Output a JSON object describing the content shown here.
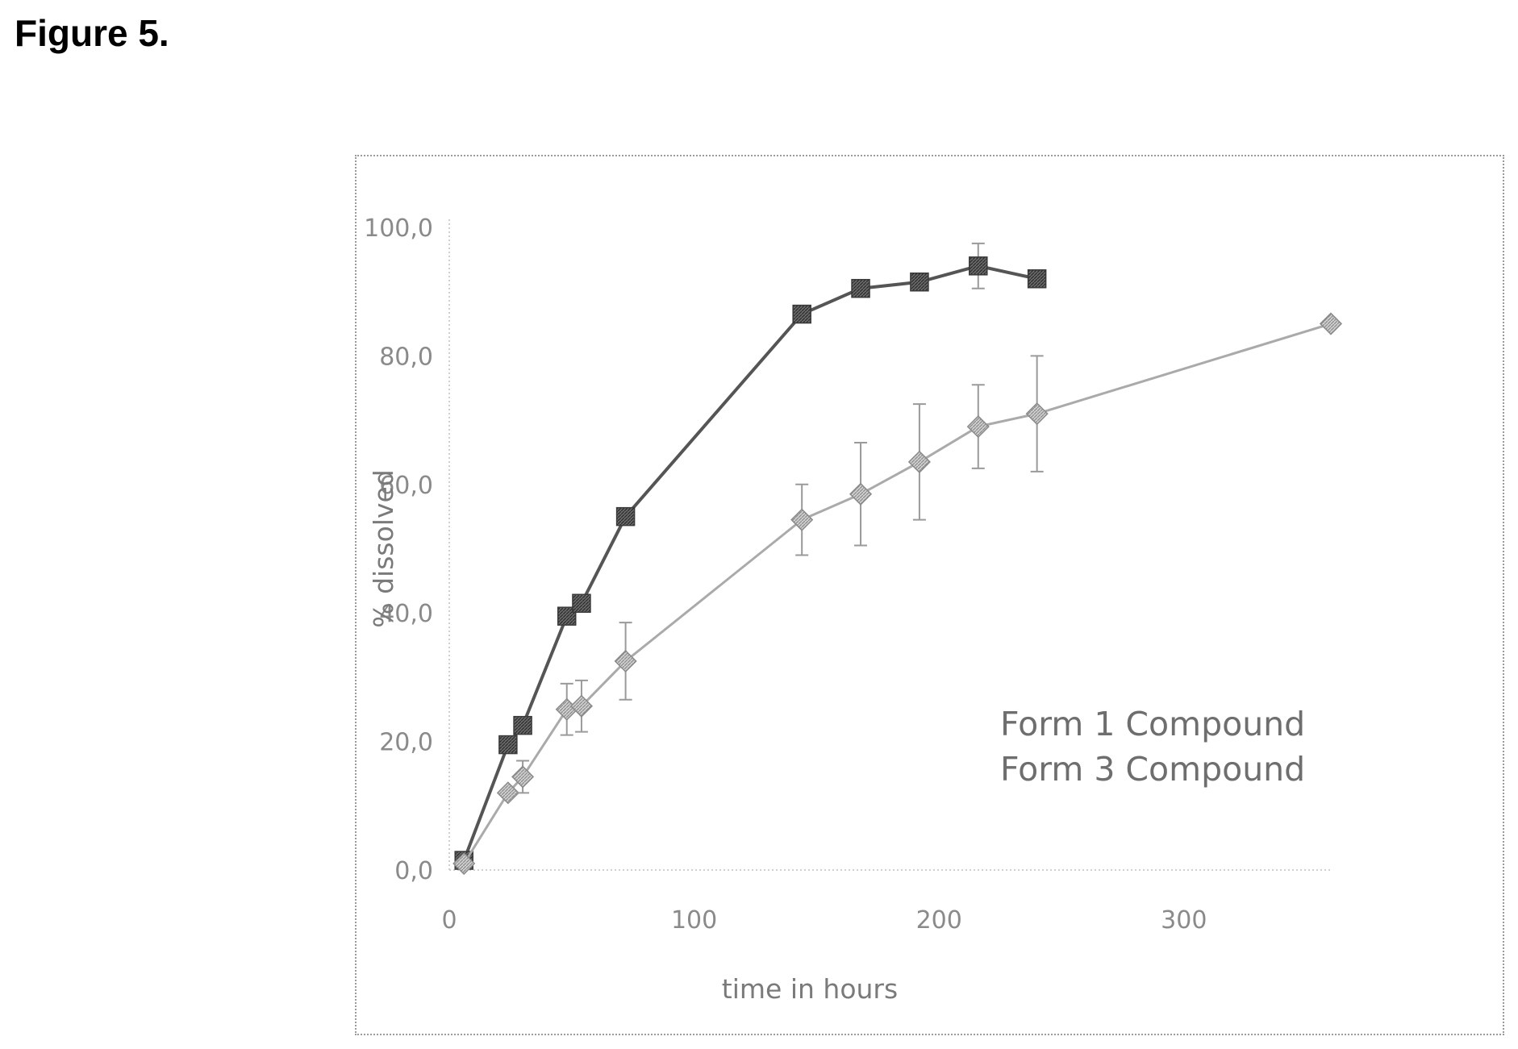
{
  "figure_label": "Figure 5.",
  "chart_data": {
    "type": "line",
    "xlabel": "time in hours",
    "ylabel": "% dissolved",
    "xlim": [
      0,
      360
    ],
    "ylim": [
      0,
      100
    ],
    "x_ticks": [
      0,
      100,
      200,
      300
    ],
    "x_tick_labels": [
      "0",
      "100",
      "200",
      "300"
    ],
    "y_ticks": [
      0,
      20,
      40,
      60,
      80,
      100
    ],
    "y_tick_labels": [
      "0,0",
      "20,0",
      "40,0",
      "60,0",
      "80,0",
      "100,0"
    ],
    "legend_position": "lower-right",
    "series": [
      {
        "name": "Form 1 Compound",
        "color": "#555555",
        "marker": "filled-square",
        "points": [
          {
            "x": 6,
            "y": 1.5,
            "err": 0
          },
          {
            "x": 24,
            "y": 19.5,
            "err": 0
          },
          {
            "x": 30,
            "y": 22.5,
            "err": 0
          },
          {
            "x": 48,
            "y": 39.5,
            "err": 0
          },
          {
            "x": 54,
            "y": 41.5,
            "err": 0
          },
          {
            "x": 72,
            "y": 55,
            "err": 0
          },
          {
            "x": 144,
            "y": 86.5,
            "err": 0
          },
          {
            "x": 168,
            "y": 90.5,
            "err": 0
          },
          {
            "x": 192,
            "y": 91.5,
            "err": 0
          },
          {
            "x": 216,
            "y": 94,
            "err": 3.5
          },
          {
            "x": 240,
            "y": 92,
            "err": 0
          }
        ]
      },
      {
        "name": "Form 3 Compound",
        "color": "#aaaaaa",
        "marker": "hatched-diamond",
        "points": [
          {
            "x": 6,
            "y": 1,
            "err": 0
          },
          {
            "x": 24,
            "y": 12,
            "err": 0
          },
          {
            "x": 30,
            "y": 14.5,
            "err": 2.5
          },
          {
            "x": 48,
            "y": 25,
            "err": 4
          },
          {
            "x": 54,
            "y": 25.5,
            "err": 4
          },
          {
            "x": 72,
            "y": 32.5,
            "err": 6
          },
          {
            "x": 144,
            "y": 54.5,
            "err": 5.5
          },
          {
            "x": 168,
            "y": 58.5,
            "err": 8
          },
          {
            "x": 192,
            "y": 63.5,
            "err": 9
          },
          {
            "x": 216,
            "y": 69,
            "err": 6.5
          },
          {
            "x": 240,
            "y": 71,
            "err": 9
          },
          {
            "x": 360,
            "y": 85,
            "err": 0
          }
        ]
      }
    ]
  }
}
